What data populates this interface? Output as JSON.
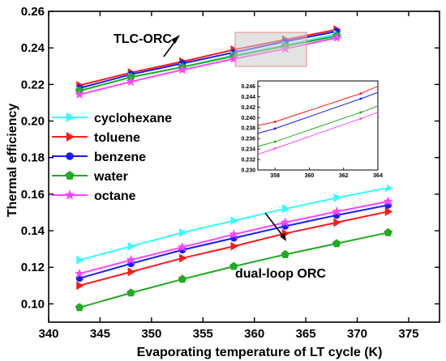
{
  "chart_data": {
    "type": "line",
    "xlabel": "Evaporating temperature of LT cycle (K)",
    "ylabel": "Thermal efficiency",
    "xlim": [
      340,
      378
    ],
    "ylim": [
      0.09,
      0.26
    ],
    "xticks": [
      "340",
      "345",
      "350",
      "355",
      "360",
      "365",
      "370",
      "375"
    ],
    "yticks": [
      "0.10",
      "0.12",
      "0.14",
      "0.16",
      "0.18",
      "0.20",
      "0.22",
      "0.24",
      "0.26"
    ],
    "annotations": [
      "TLC-ORC",
      "dual-loop ORC"
    ],
    "legend_position": "left-middle",
    "series": [
      {
        "name": "cyclohexane",
        "color": "#33ffff",
        "marker": "triangle-right",
        "x": [
          343,
          348,
          353,
          358,
          363,
          368,
          373
        ],
        "values": [
          0.124,
          0.1315,
          0.139,
          0.1455,
          0.152,
          0.158,
          0.1635
        ]
      },
      {
        "name": "toluene",
        "color": "#ff1a1a",
        "marker": "triangle-right",
        "x": [
          343,
          348,
          353,
          358,
          363,
          368,
          373
        ],
        "values": [
          0.11,
          0.1175,
          0.125,
          0.1315,
          0.1385,
          0.1445,
          0.1505
        ]
      },
      {
        "name": "benzene",
        "color": "#1a1aff",
        "marker": "circle",
        "x": [
          343,
          348,
          353,
          358,
          363,
          368,
          373
        ],
        "values": [
          0.114,
          0.122,
          0.1295,
          0.136,
          0.1425,
          0.1485,
          0.154
        ]
      },
      {
        "name": "water",
        "color": "#22aa22",
        "marker": "pentagon",
        "x": [
          343,
          348,
          353,
          358,
          363,
          368,
          373
        ],
        "values": [
          0.098,
          0.106,
          0.1135,
          0.1205,
          0.127,
          0.133,
          0.139
        ]
      },
      {
        "name": "octane",
        "color": "#ff44ff",
        "marker": "star",
        "x": [
          343,
          348,
          353,
          358,
          363,
          368,
          373
        ],
        "values": [
          0.1165,
          0.124,
          0.131,
          0.138,
          0.1445,
          0.1505,
          0.156
        ]
      }
    ],
    "tlc_series": [
      {
        "name": "toluene",
        "color": "#ff1a1a",
        "marker": "triangle-right",
        "x": [
          343,
          348,
          353,
          358,
          363,
          368
        ],
        "values": [
          0.2195,
          0.2265,
          0.2325,
          0.239,
          0.2445,
          0.25
        ]
      },
      {
        "name": "benzene",
        "color": "#1a1aff",
        "marker": "circle",
        "x": [
          343,
          348,
          353,
          358,
          363,
          368
        ],
        "values": [
          0.218,
          0.2255,
          0.2315,
          0.2375,
          0.2435,
          0.249
        ]
      },
      {
        "name": "cyclohexane",
        "color": "#33ffff",
        "marker": "triangle-right",
        "x": [
          343,
          348,
          353,
          358,
          363,
          368
        ],
        "values": [
          0.2165,
          0.224,
          0.2295,
          0.236,
          0.2415,
          0.2475
        ]
      },
      {
        "name": "water",
        "color": "#22aa22",
        "marker": "pentagon",
        "x": [
          343,
          348,
          353,
          358,
          363,
          368
        ],
        "values": [
          0.2165,
          0.224,
          0.2295,
          0.2355,
          0.241,
          0.2465
        ]
      },
      {
        "name": "octane",
        "color": "#ff44ff",
        "marker": "star",
        "x": [
          343,
          348,
          353,
          358,
          363,
          368
        ],
        "values": [
          0.2145,
          0.2215,
          0.228,
          0.234,
          0.2395,
          0.2455
        ]
      }
    ],
    "inset": {
      "xlim": [
        357,
        364
      ],
      "ylim": [
        0.23,
        0.247
      ],
      "xticks": [
        "358",
        "360",
        "362",
        "364"
      ],
      "yticks": [
        "0.230",
        "0.232",
        "0.234",
        "0.236",
        "0.238",
        "0.240",
        "0.242",
        "0.244",
        "0.246"
      ],
      "series": [
        {
          "color": "#ff1a1a",
          "x": [
            357,
            358,
            363,
            364
          ],
          "values": [
            0.2385,
            0.2392,
            0.2446,
            0.246
          ]
        },
        {
          "color": "#1a1aff",
          "x": [
            357,
            358,
            363,
            364
          ],
          "values": [
            0.237,
            0.2379,
            0.2436,
            0.2448
          ]
        },
        {
          "color": "#22aa22",
          "x": [
            357,
            358,
            363,
            364
          ],
          "values": [
            0.2345,
            0.2354,
            0.241,
            0.2422
          ]
        },
        {
          "color": "#ff44ff",
          "x": [
            357,
            358,
            363,
            364
          ],
          "values": [
            0.233,
            0.2341,
            0.2398,
            0.241
          ]
        }
      ]
    }
  }
}
